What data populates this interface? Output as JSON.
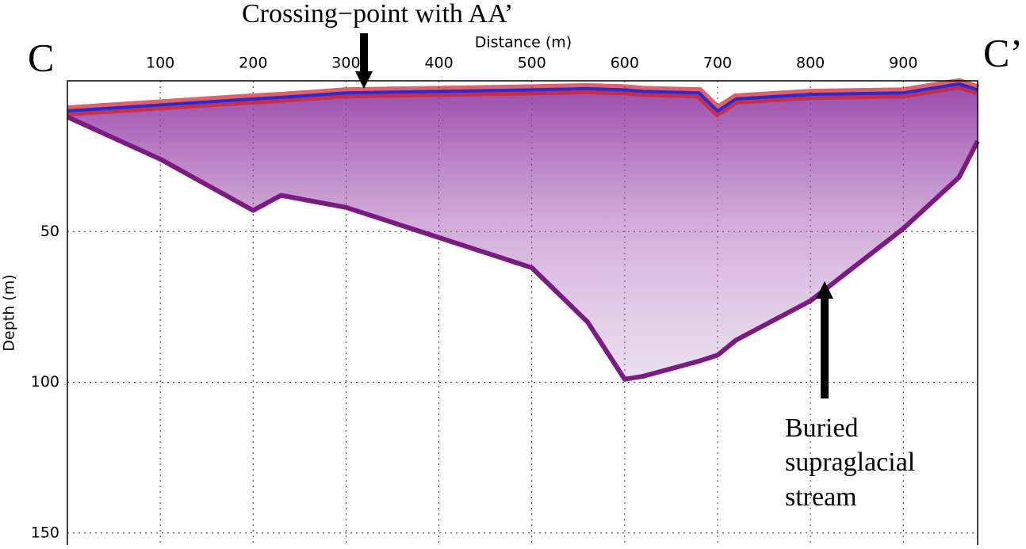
{
  "chart_data": {
    "type": "radargram",
    "xlabel": "Distance (m)",
    "ylabel": "Depth (m)",
    "section_labels": [
      "C",
      "C’"
    ],
    "annotations": [
      "Crossing−point with AA’",
      "Buried",
      "supraglacial",
      "stream"
    ],
    "x": [
      0,
      100,
      200,
      230,
      300,
      400,
      500,
      560,
      600,
      620,
      680,
      700,
      720,
      800,
      900,
      960,
      980
    ],
    "series": [
      {
        "color": "#2a2ad0",
        "values": [
          10,
          8,
          6,
          5.5,
          4,
          3.5,
          3,
          2.6,
          3,
          3.5,
          4,
          10,
          6,
          4.5,
          4,
          1,
          3
        ]
      },
      {
        "color": "#7a1a82",
        "values": [
          12,
          26,
          43,
          38,
          42,
          52,
          62,
          80,
          99,
          98,
          93,
          91,
          86,
          73,
          49,
          32,
          20
        ]
      }
    ],
    "xlim": [
      0,
      980
    ],
    "ylim": [
      0,
      154
    ],
    "xticks": [
      100,
      200,
      300,
      400,
      500,
      600,
      700,
      800,
      900
    ],
    "yticks": [
      50,
      100,
      150
    ],
    "grid": true
  }
}
